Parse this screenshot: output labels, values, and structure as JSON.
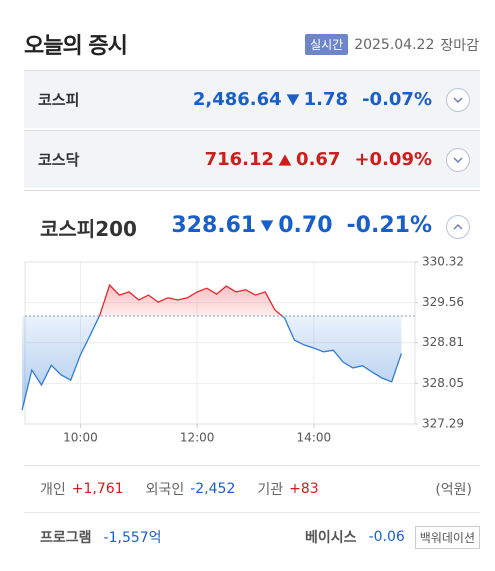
{
  "header": {
    "title": "오늘의 증시",
    "badge": "실시간",
    "date": "2025.04.22",
    "status": "장마감"
  },
  "indices": [
    {
      "name": "코스피",
      "value": "2,486.64",
      "change": "1.78",
      "rate": "-0.07%",
      "direction": "down"
    },
    {
      "name": "코스닥",
      "value": "716.12",
      "change": "0.67",
      "rate": "+0.09%",
      "direction": "up"
    }
  ],
  "featured": {
    "name": "코스피200",
    "value": "328.61",
    "change": "0.70",
    "rate": "-0.21%",
    "direction": "down"
  },
  "chart_data": {
    "type": "line",
    "x": [
      540,
      550,
      560,
      570,
      580,
      590,
      600,
      610,
      620,
      630,
      640,
      650,
      660,
      670,
      680,
      690,
      700,
      710,
      720,
      730,
      740,
      750,
      760,
      770,
      780,
      790,
      800,
      810,
      820,
      830,
      840,
      850,
      860,
      870,
      880,
      890,
      900,
      910,
      920,
      930
    ],
    "values": [
      327.55,
      328.3,
      328.02,
      328.39,
      328.21,
      328.11,
      328.58,
      328.95,
      329.33,
      329.89,
      329.7,
      329.76,
      329.61,
      329.7,
      329.57,
      329.65,
      329.61,
      329.65,
      329.76,
      329.83,
      329.72,
      329.87,
      329.76,
      329.8,
      329.7,
      329.76,
      329.42,
      329.27,
      328.86,
      328.77,
      328.71,
      328.64,
      328.67,
      328.45,
      328.34,
      328.38,
      328.26,
      328.15,
      328.08,
      328.61
    ],
    "xlim": [
      543,
      944
    ],
    "ylim": [
      327.29,
      330.32
    ],
    "xticks": [
      {
        "value": 600,
        "label": "10:00"
      },
      {
        "value": 720,
        "label": "12:00"
      },
      {
        "value": 840,
        "label": "14:00"
      }
    ],
    "yticks": [
      330.32,
      329.56,
      328.81,
      328.05,
      327.29
    ],
    "baseline": 329.31,
    "up_color": "#e8262b",
    "down_color": "#2f7cd8",
    "grid": true
  },
  "investors": {
    "items": [
      {
        "label": "개인",
        "value": "+1,761",
        "direction": "up"
      },
      {
        "label": "외국인",
        "value": "-2,452",
        "direction": "down"
      },
      {
        "label": "기관",
        "value": "+83",
        "direction": "up"
      }
    ],
    "unit": "(억원)"
  },
  "program": {
    "label": "프로그램",
    "value": "-1,557억",
    "direction": "down"
  },
  "basis": {
    "label": "베이시스",
    "value": "-0.06",
    "direction": "down",
    "state": "백워데이션"
  }
}
